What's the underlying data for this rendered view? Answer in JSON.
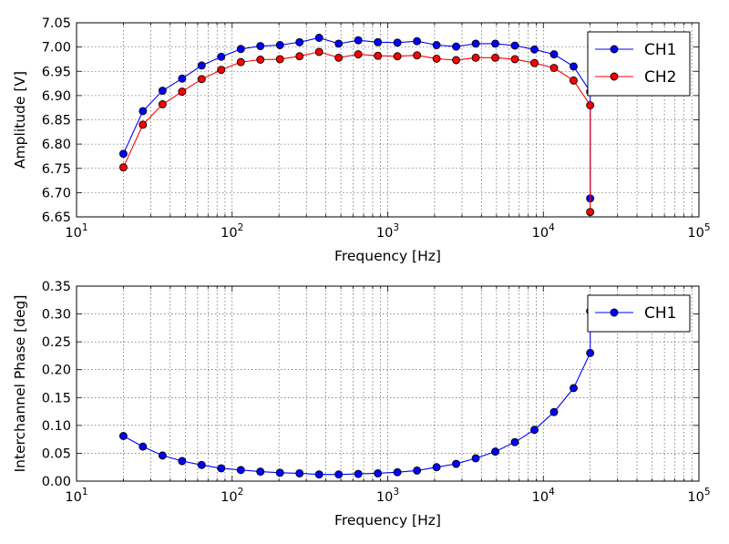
{
  "chart_data": [
    {
      "type": "line",
      "xscale": "log",
      "xlim": [
        10,
        100000
      ],
      "ylim": [
        6.65,
        7.05
      ],
      "yticks": [
        "6.65",
        "6.70",
        "6.75",
        "6.80",
        "6.85",
        "6.90",
        "6.95",
        "7.00",
        "7.05"
      ],
      "xticks": [
        {
          "base": "10",
          "exp": "1"
        },
        {
          "base": "10",
          "exp": "2"
        },
        {
          "base": "10",
          "exp": "3"
        },
        {
          "base": "10",
          "exp": "4"
        },
        {
          "base": "10",
          "exp": "5"
        }
      ],
      "xlabel": "Frequency [Hz]",
      "ylabel": "Amplitude [V]",
      "grid": true,
      "legend_position": "top-right",
      "x": [
        20,
        26.7,
        35.7,
        47.7,
        63.7,
        85.1,
        113.7,
        151.9,
        202.9,
        271.1,
        362.2,
        483.9,
        646.5,
        863.8,
        1154,
        1542,
        2060,
        2752,
        3677,
        4913,
        6564,
        8769,
        11716,
        15653,
        20000
      ],
      "series": [
        {
          "name": "CH1",
          "color": "#0000ff",
          "values": [
            6.78,
            6.868,
            6.91,
            6.935,
            6.962,
            6.98,
            6.996,
            7.002,
            7.004,
            7.01,
            7.019,
            7.007,
            7.014,
            7.01,
            7.009,
            7.012,
            7.004,
            7.001,
            7.007,
            7.007,
            7.003,
            6.995,
            6.985,
            6.96,
            6.908
          ]
        },
        {
          "name": "CH2",
          "color": "#ff0000",
          "values": [
            6.752,
            6.84,
            6.882,
            6.908,
            6.934,
            6.953,
            6.969,
            6.974,
            6.975,
            6.981,
            6.99,
            6.978,
            6.985,
            6.982,
            6.981,
            6.983,
            6.976,
            6.973,
            6.978,
            6.978,
            6.975,
            6.967,
            6.957,
            6.931,
            6.88
          ]
        }
      ],
      "tail": {
        "x": [
          20000
        ],
        "CH1": [
          6.688
        ],
        "CH2": [
          6.66
        ]
      }
    },
    {
      "type": "line",
      "xscale": "log",
      "xlim": [
        10,
        100000
      ],
      "ylim": [
        0,
        0.35
      ],
      "yticks": [
        "0.00",
        "0.05",
        "0.10",
        "0.15",
        "0.20",
        "0.25",
        "0.30",
        "0.35"
      ],
      "xticks": [
        {
          "base": "10",
          "exp": "1"
        },
        {
          "base": "10",
          "exp": "2"
        },
        {
          "base": "10",
          "exp": "3"
        },
        {
          "base": "10",
          "exp": "4"
        },
        {
          "base": "10",
          "exp": "5"
        }
      ],
      "xlabel": "Frequency [Hz]",
      "ylabel": "Interchannel Phase [deg]",
      "grid": true,
      "legend_position": "top-right",
      "x": [
        20,
        26.7,
        35.7,
        47.7,
        63.7,
        85.1,
        113.7,
        151.9,
        202.9,
        271.1,
        362.2,
        483.9,
        646.5,
        863.8,
        1154,
        1542,
        2060,
        2752,
        3677,
        4913,
        6564,
        8769,
        11716,
        15653,
        20000
      ],
      "series": [
        {
          "name": "CH1",
          "color": "#0000ff",
          "values": [
            0.081,
            0.062,
            0.046,
            0.036,
            0.029,
            0.023,
            0.02,
            0.017,
            0.015,
            0.014,
            0.012,
            0.012,
            0.013,
            0.014,
            0.016,
            0.019,
            0.025,
            0.031,
            0.041,
            0.053,
            0.07,
            0.092,
            0.124,
            0.167,
            0.23
          ]
        }
      ],
      "tail": {
        "x": [
          20000
        ],
        "CH1": [
          0.305
        ]
      }
    }
  ]
}
